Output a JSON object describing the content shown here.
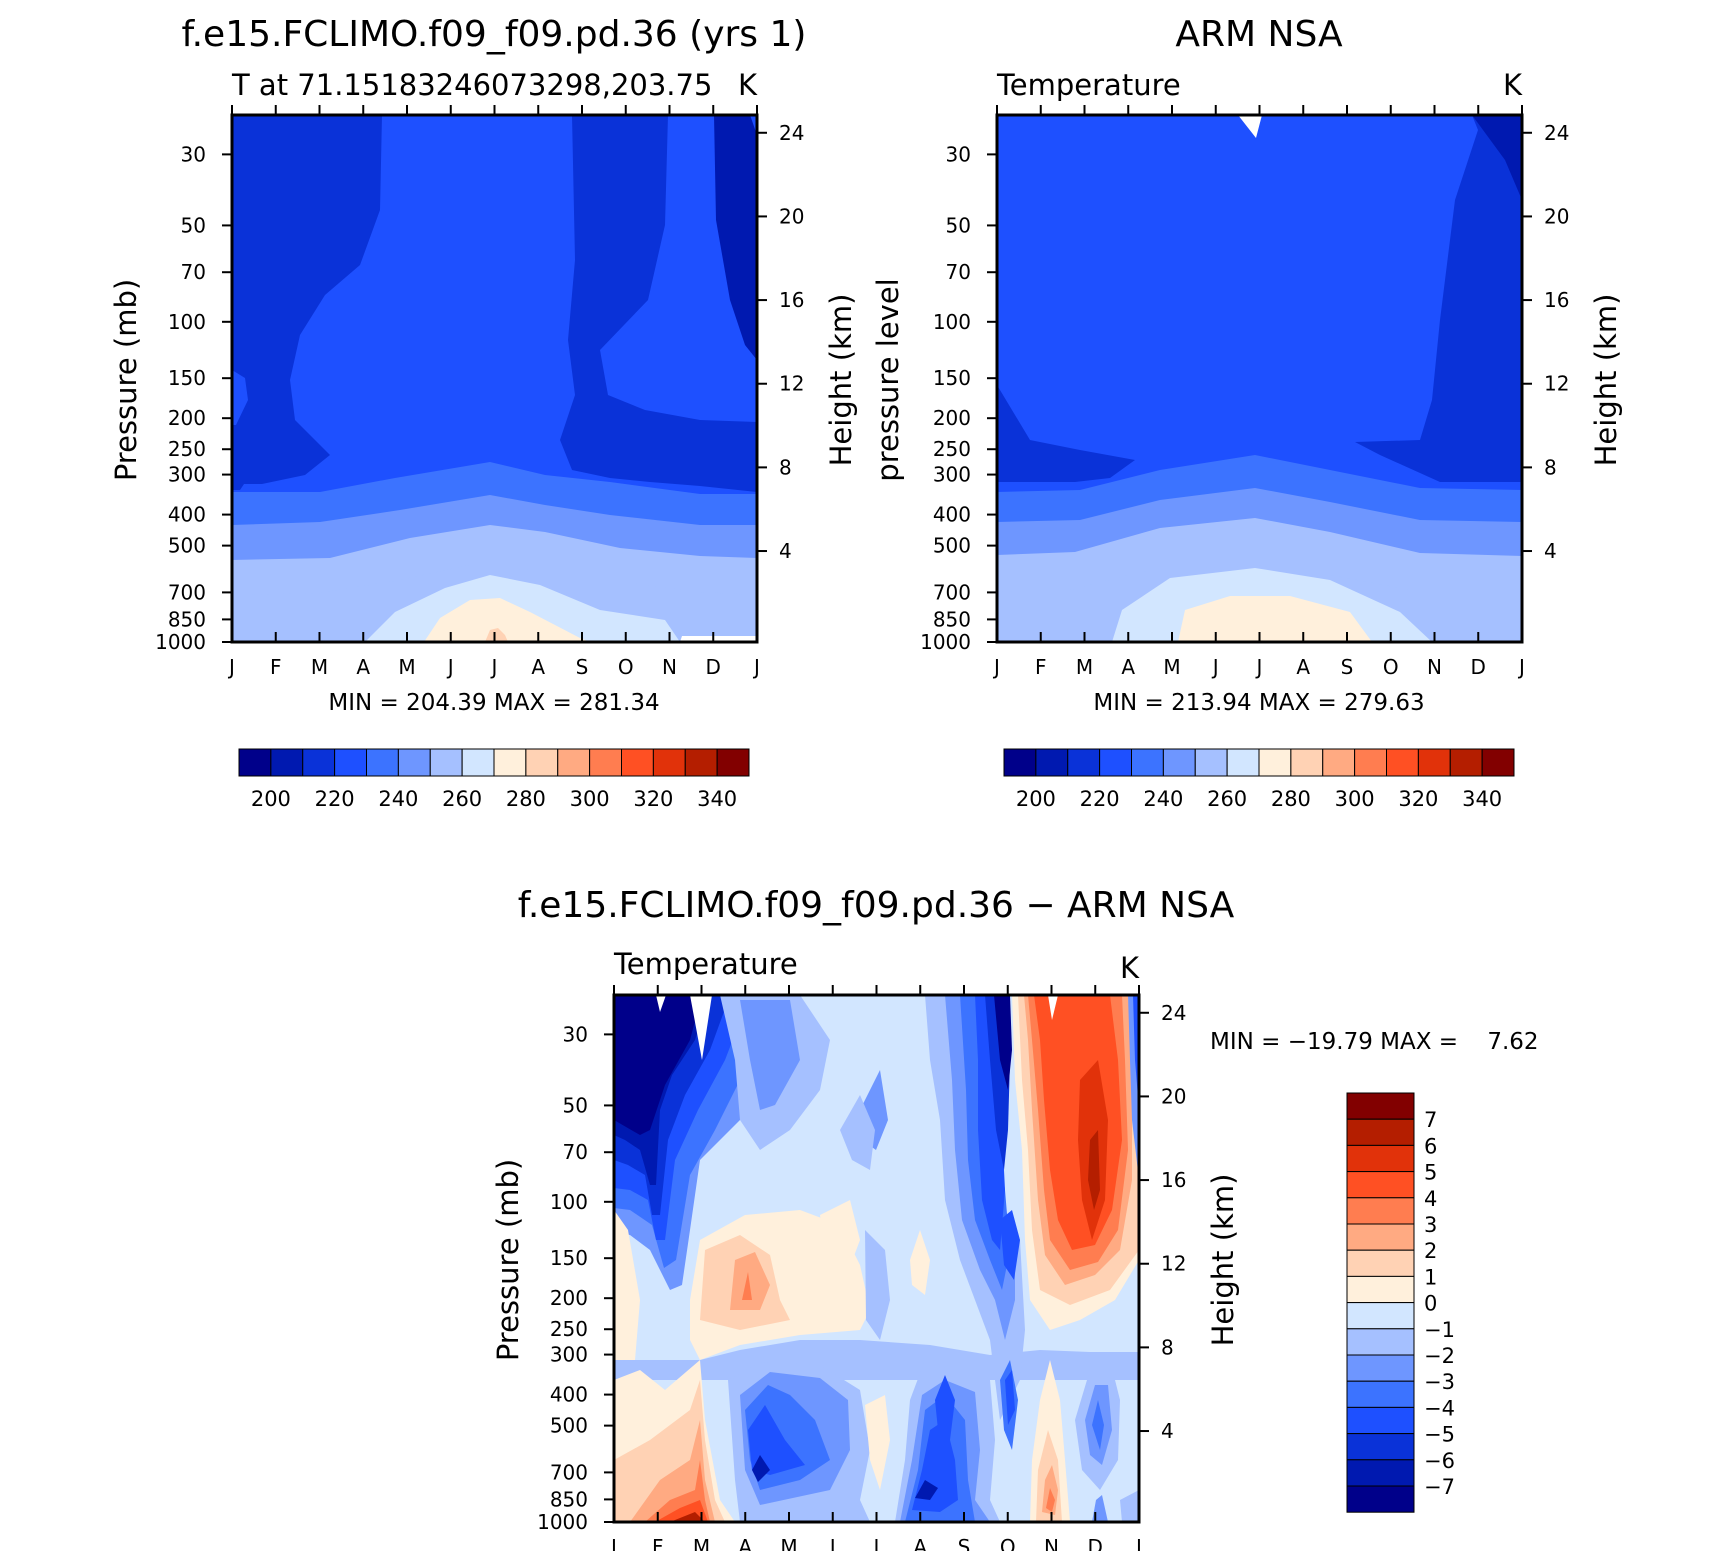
{
  "page_title": "NCL contour plot panel: model vs ARM NSA temperature",
  "chart_data": [
    {
      "type": "heatmap",
      "id": "model",
      "title": "f.e15.FCLIMO.f09_f09.pd.36 (yrs 1)",
      "subtitle_left": "T at 71.15183246073298,203.75",
      "subtitle_right": "K",
      "xlabel": "",
      "ylabel": "Pressure (mb)",
      "ylabel_right": "Height (km)",
      "x_ticks": [
        "J",
        "F",
        "M",
        "A",
        "M",
        "J",
        "J",
        "A",
        "S",
        "O",
        "N",
        "D",
        "J"
      ],
      "y_ticks": [
        "30",
        "50",
        "70",
        "100",
        "150",
        "200",
        "250",
        "300",
        "400",
        "500",
        "700",
        "850",
        "1000"
      ],
      "y_ticks_right": [
        "24",
        "20",
        "16",
        "12",
        "8",
        "4"
      ],
      "ylim": [
        1000,
        20
      ],
      "stat_text": "MIN = 204.39 MAX = 281.34",
      "min": 204.39,
      "max": 281.34,
      "colorbar": {
        "levels": [
          "200",
          "220",
          "240",
          "260",
          "280",
          "300",
          "320",
          "340"
        ],
        "colors": [
          "#00008a",
          "#0019b0",
          "#0a32d8",
          "#1e50ff",
          "#3c73ff",
          "#6e96ff",
          "#a5c0ff",
          "#d2e6ff",
          "#fff0dc",
          "#ffd2b4",
          "#ffaa82",
          "#ff7d50",
          "#ff5023",
          "#e1320a",
          "#b41e00",
          "#820000"
        ]
      }
    },
    {
      "type": "heatmap",
      "id": "obs",
      "title": "ARM NSA",
      "subtitle_left": "Temperature",
      "subtitle_right": "K",
      "ylabel": "pressure level",
      "ylabel_right": "Height (km)",
      "x_ticks": [
        "J",
        "F",
        "M",
        "A",
        "M",
        "J",
        "J",
        "A",
        "S",
        "O",
        "N",
        "D",
        "J"
      ],
      "y_ticks": [
        "30",
        "50",
        "70",
        "100",
        "150",
        "200",
        "250",
        "300",
        "400",
        "500",
        "700",
        "850",
        "1000"
      ],
      "y_ticks_right": [
        "24",
        "20",
        "16",
        "12",
        "8",
        "4"
      ],
      "ylim": [
        1000,
        20
      ],
      "stat_text": "MIN = 213.94 MAX = 279.63",
      "min": 213.94,
      "max": 279.63,
      "colorbar": {
        "levels": [
          "200",
          "220",
          "240",
          "260",
          "280",
          "300",
          "320",
          "340"
        ]
      }
    },
    {
      "type": "heatmap",
      "id": "diff",
      "title": "f.e15.FCLIMO.f09_f09.pd.36 − ARM NSA",
      "subtitle_left": "Temperature",
      "subtitle_right": "K",
      "ylabel": "Pressure (mb)",
      "ylabel_right": "Height (km)",
      "x_ticks": [
        "J",
        "F",
        "M",
        "A",
        "M",
        "J",
        "J",
        "A",
        "S",
        "O",
        "N",
        "D",
        "J"
      ],
      "y_ticks": [
        "30",
        "50",
        "70",
        "100",
        "150",
        "200",
        "250",
        "300",
        "400",
        "500",
        "700",
        "850",
        "1000"
      ],
      "y_ticks_right": [
        "24",
        "20",
        "16",
        "12",
        "8",
        "4"
      ],
      "ylim": [
        1000,
        20
      ],
      "stat_text": "MIN = −19.79 MAX =    7.62",
      "min": -19.79,
      "max": 7.62,
      "colorbar": {
        "levels": [
          "7",
          "6",
          "5",
          "4",
          "3",
          "2",
          "1",
          "0",
          "−1",
          "−2",
          "−3",
          "−4",
          "−5",
          "−6",
          "−7"
        ],
        "colors": [
          "#820000",
          "#b41e00",
          "#e1320a",
          "#ff5023",
          "#ff7d50",
          "#ffaa82",
          "#ffd2b4",
          "#fff0dc",
          "#d2e6ff",
          "#a5c0ff",
          "#6e96ff",
          "#3c73ff",
          "#1e50ff",
          "#0a32d8",
          "#0019b0",
          "#00008a"
        ]
      }
    }
  ]
}
